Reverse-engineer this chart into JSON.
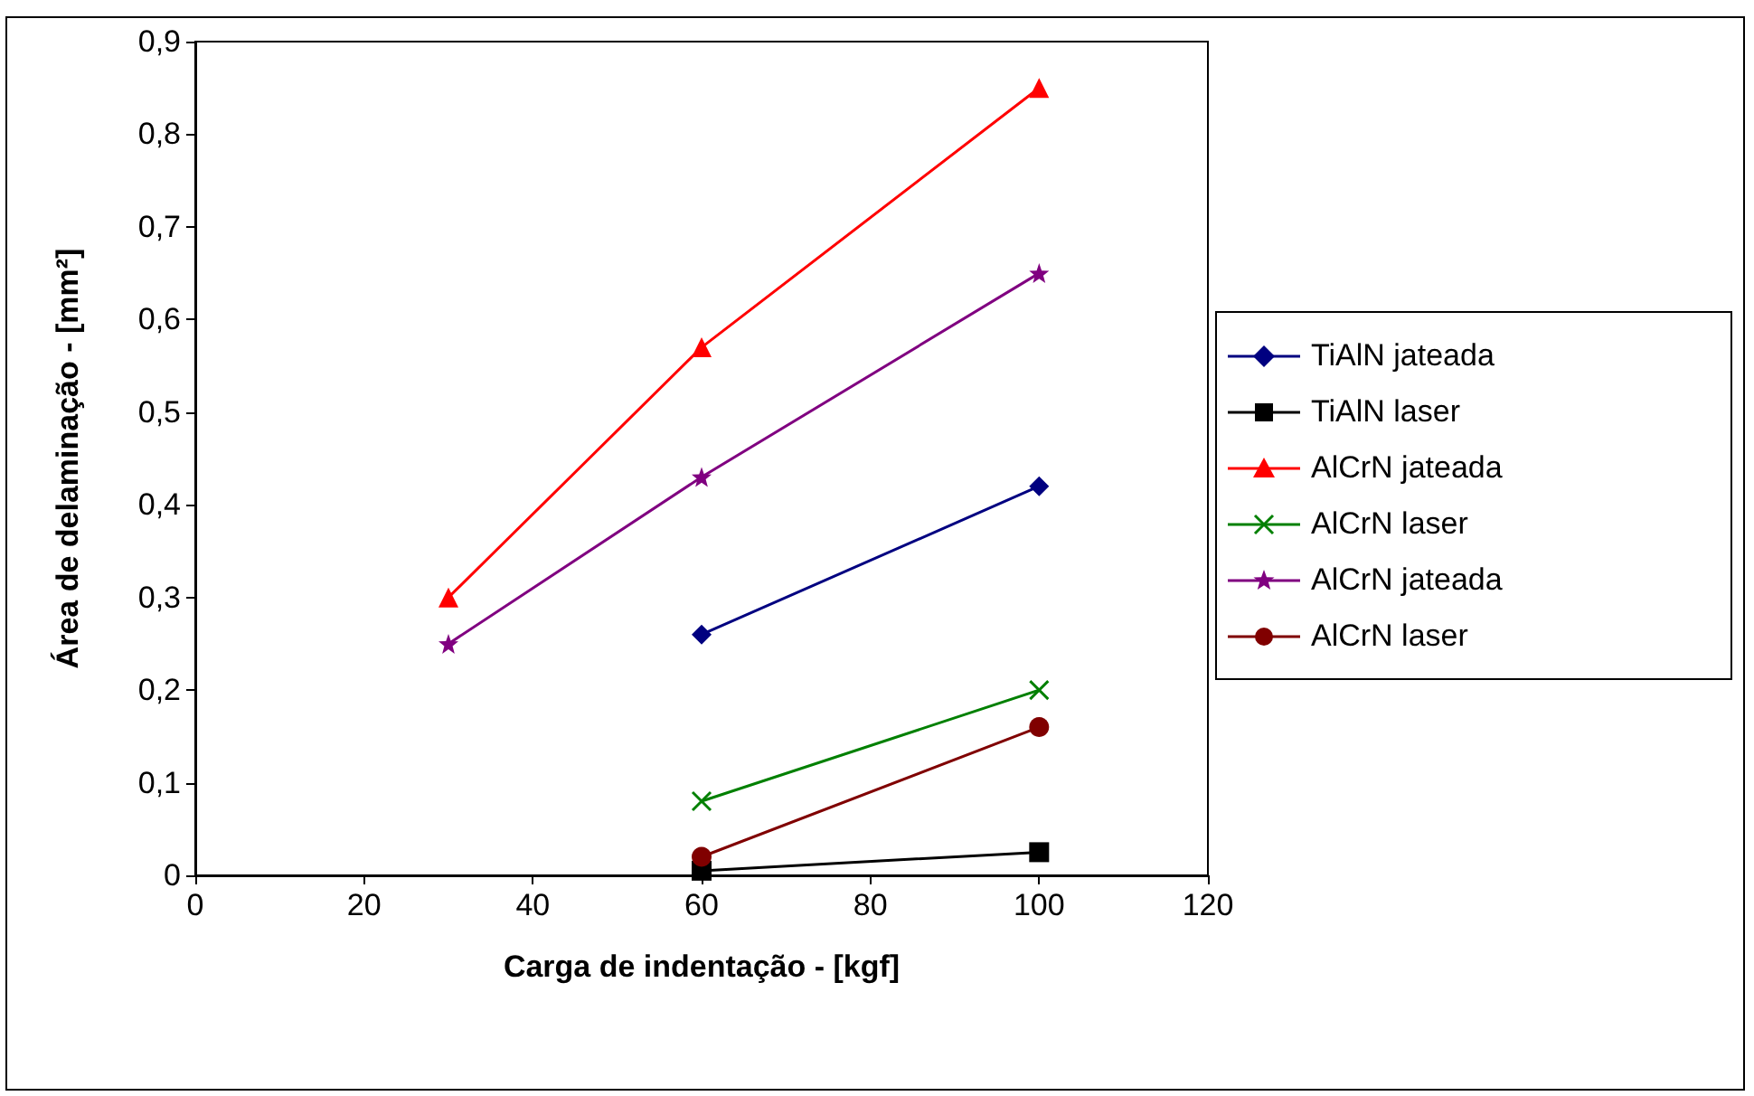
{
  "chart_data": {
    "type": "line",
    "xlabel": "Carga de indentação - [kgf]",
    "ylabel": "Área de delaminação - [mm²]",
    "xlim": [
      0,
      120
    ],
    "xticks": [
      0,
      20,
      40,
      60,
      80,
      100,
      120
    ],
    "ylim": [
      0,
      0.9
    ],
    "yticks": [
      {
        "value": 0,
        "label": "0"
      },
      {
        "value": 0.1,
        "label": "0,1"
      },
      {
        "value": 0.2,
        "label": "0,2"
      },
      {
        "value": 0.3,
        "label": "0,3"
      },
      {
        "value": 0.4,
        "label": "0,4"
      },
      {
        "value": 0.5,
        "label": "0,5"
      },
      {
        "value": 0.6,
        "label": "0,6"
      },
      {
        "value": 0.7,
        "label": "0,7"
      },
      {
        "value": 0.8,
        "label": "0,8"
      },
      {
        "value": 0.9,
        "label": "0,9"
      }
    ],
    "grid": false,
    "legend": "right",
    "line_style": "solid",
    "series": [
      {
        "name": "TiAlN jateada",
        "color": "#000080",
        "marker": "diamond",
        "x": [
          60,
          100
        ],
        "values": [
          0.26,
          0.42
        ]
      },
      {
        "name": "TiAlN laser",
        "color": "#000000",
        "marker": "square",
        "x": [
          60,
          100
        ],
        "values": [
          0.005,
          0.025
        ]
      },
      {
        "name": "AlCrN jateada",
        "color": "#ff0000",
        "marker": "triangle",
        "x": [
          30,
          60,
          100
        ],
        "values": [
          0.3,
          0.57,
          0.85
        ]
      },
      {
        "name": "AlCrN laser",
        "color": "#008000",
        "marker": "cross",
        "x": [
          60,
          100
        ],
        "values": [
          0.08,
          0.2
        ]
      },
      {
        "name": "AlCrN jateada",
        "color": "#800080",
        "marker": "star",
        "x": [
          30,
          60,
          100
        ],
        "values": [
          0.25,
          0.43,
          0.65
        ]
      },
      {
        "name": "AlCrN laser",
        "color": "#800000",
        "marker": "circle",
        "x": [
          60,
          100
        ],
        "values": [
          0.02,
          0.16
        ]
      }
    ]
  }
}
